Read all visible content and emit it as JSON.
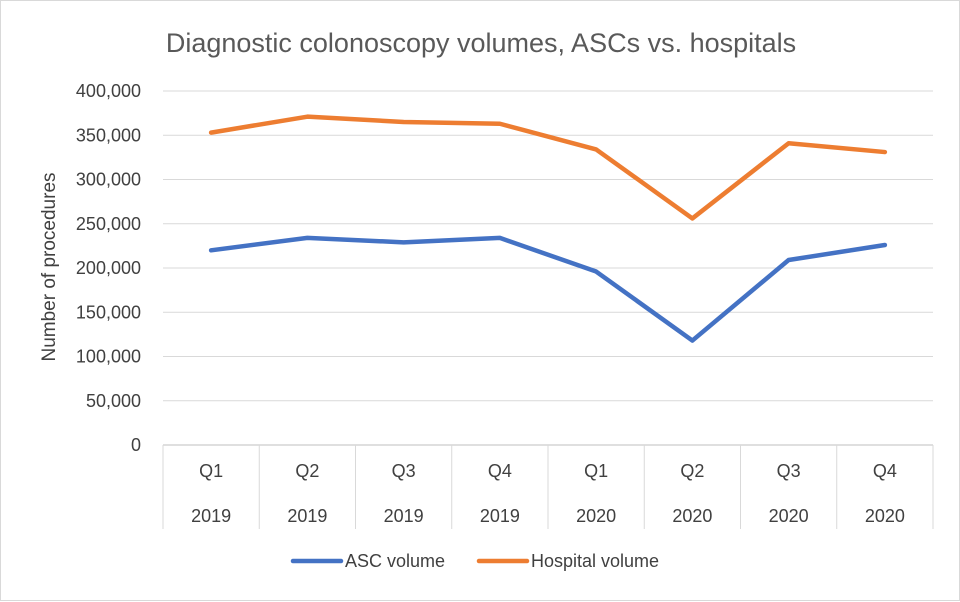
{
  "chart_data": {
    "type": "line",
    "title": "Diagnostic colonoscopy volumes, ASCs vs. hospitals",
    "xlabel": "",
    "ylabel": "Number of procedures",
    "ylim": [
      0,
      400000
    ],
    "y_ticks": [
      0,
      50000,
      100000,
      150000,
      200000,
      250000,
      300000,
      350000,
      400000
    ],
    "y_tick_labels": [
      "0",
      "50,000",
      "100,000",
      "150,000",
      "200,000",
      "250,000",
      "300,000",
      "350,000",
      "400,000"
    ],
    "grid": true,
    "legend_position": "bottom",
    "categories": [
      {
        "quarter": "Q1",
        "year": "2019"
      },
      {
        "quarter": "Q2",
        "year": "2019"
      },
      {
        "quarter": "Q3",
        "year": "2019"
      },
      {
        "quarter": "Q4",
        "year": "2019"
      },
      {
        "quarter": "Q1",
        "year": "2020"
      },
      {
        "quarter": "Q2",
        "year": "2020"
      },
      {
        "quarter": "Q3",
        "year": "2020"
      },
      {
        "quarter": "Q4",
        "year": "2020"
      }
    ],
    "series": [
      {
        "name": "ASC volume",
        "color": "#4472C4",
        "values": [
          220000,
          234000,
          229000,
          234000,
          196000,
          118000,
          209000,
          226000
        ]
      },
      {
        "name": "Hospital volume",
        "color": "#ED7D31",
        "values": [
          353000,
          371000,
          365000,
          363000,
          334000,
          256000,
          341000,
          331000
        ]
      }
    ]
  }
}
